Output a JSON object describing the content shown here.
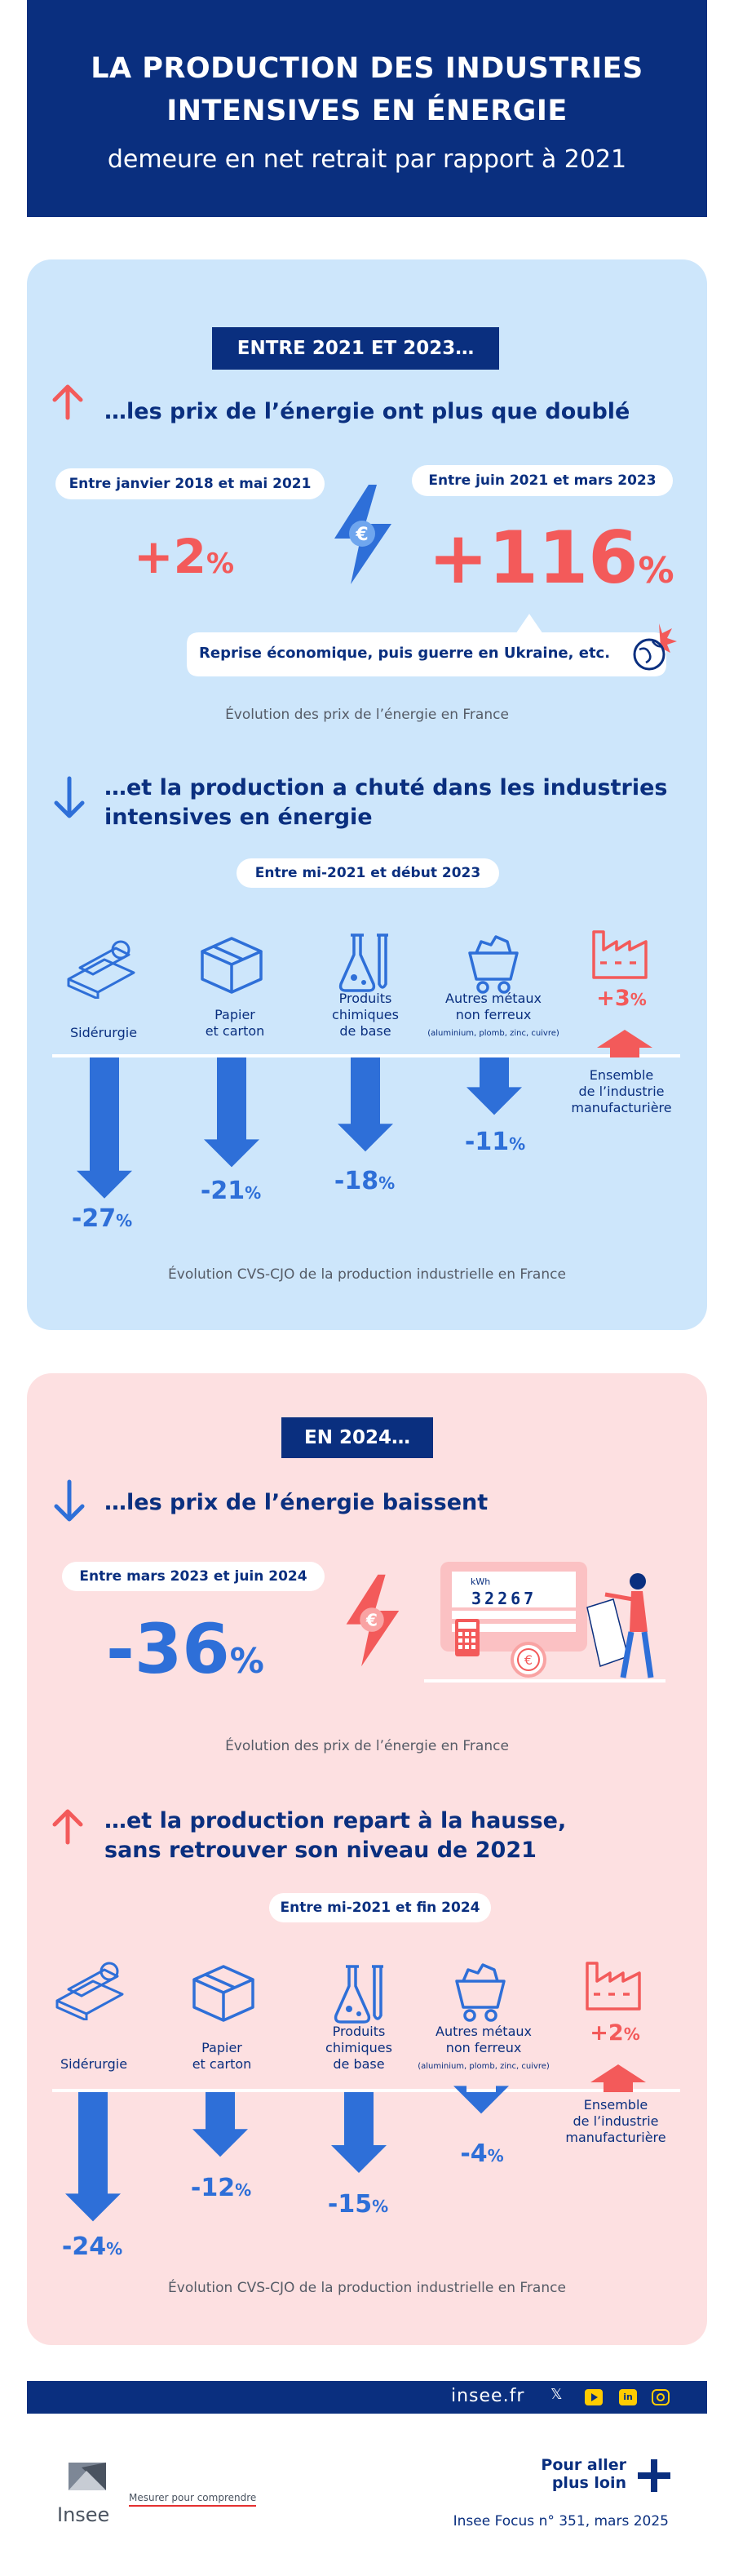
{
  "header": {
    "title_line1": "LA PRODUCTION DES INDUSTRIES",
    "title_line2": "INTENSIVES EN ÉNERGIE",
    "subtitle": "demeure en net retrait par rapport à 2021"
  },
  "section1": {
    "tag": "ENTRE 2021 ET 2023…",
    "prices_title": "…les prix de l’énergie ont plus que doublé",
    "period_a": "Entre janvier 2018 et mai 2021",
    "value_a": "+2",
    "period_b": "Entre juin 2021 et mars 2023",
    "value_b": "+116",
    "unit": "%",
    "callout": "Reprise économique, puis guerre en Ukraine, etc.",
    "prices_caption": "Évolution des prix de l’énergie en France",
    "prod_title_line1": "…et la production a chuté dans les industries",
    "prod_title_line2": "intensives en énergie",
    "prod_period": "Entre mi-2021 et début 2023",
    "categories": [
      {
        "line1": "Sidérurgie",
        "line2": "",
        "line3": "",
        "note": "",
        "value": "-27"
      },
      {
        "line1": "Papier",
        "line2": "et carton",
        "line3": "",
        "note": "",
        "value": "-21"
      },
      {
        "line1": "Produits",
        "line2": "chimiques",
        "line3": "de base",
        "note": "",
        "value": "-18"
      },
      {
        "line1": "Autres métaux",
        "line2": "non ferreux",
        "line3": "",
        "note": "(aluminium, plomb, zinc, cuivre)",
        "value": "-11"
      },
      {
        "line1": "Ensemble",
        "line2": "de l’industrie",
        "line3": "manufacturière",
        "note": "",
        "value": "+3"
      }
    ],
    "values_pct": [
      -27,
      -21,
      -18,
      -11,
      3
    ],
    "prod_caption": "Évolution CVS-CJO de la production industrielle en France"
  },
  "section2": {
    "tag": "EN 2024…",
    "prices_title": "…les prix de l’énergie baissent",
    "period": "Entre mars 2023 et juin 2024",
    "value": "-36",
    "unit": "%",
    "meter_label": "kWh",
    "meter_digits": "32267",
    "prices_caption": "Évolution des prix de l’énergie en France",
    "prod_title_line1": "…et la production repart à la hausse,",
    "prod_title_line2": "sans retrouver son niveau de 2021",
    "prod_period": "Entre mi-2021 et fin 2024",
    "categories": [
      {
        "line1": "Sidérurgie",
        "line2": "",
        "line3": "",
        "note": "",
        "value": "-24"
      },
      {
        "line1": "Papier",
        "line2": "et carton",
        "line3": "",
        "note": "",
        "value": "-12"
      },
      {
        "line1": "Produits",
        "line2": "chimiques",
        "line3": "de base",
        "note": "",
        "value": "-15"
      },
      {
        "line1": "Autres métaux",
        "line2": "non ferreux",
        "line3": "",
        "note": "(aluminium, plomb, zinc, cuivre)",
        "value": "-4"
      },
      {
        "line1": "Ensemble",
        "line2": "de l’industrie",
        "line3": "manufacturière",
        "note": "",
        "value": "+2"
      }
    ],
    "values_pct": [
      -24,
      -12,
      -15,
      -4,
      2
    ],
    "prod_caption": "Évolution CVS-CJO de la production industrielle en France"
  },
  "footer": {
    "site": "insee.fr",
    "social": [
      "x-icon",
      "youtube-icon",
      "linkedin-icon",
      "instagram-icon"
    ],
    "logo_text": "Insee",
    "tagline": "Mesurer pour comprendre",
    "more_line1": "Pour aller",
    "more_line2": "plus loin",
    "publication": "Insee Focus n° 351, mars 2025"
  },
  "colors": {
    "navy": "#0a2f7f",
    "blue": "#2e6fd8",
    "red": "#f35a5a",
    "panel_blue": "#cde6fb",
    "panel_pink": "#fde0e1"
  }
}
